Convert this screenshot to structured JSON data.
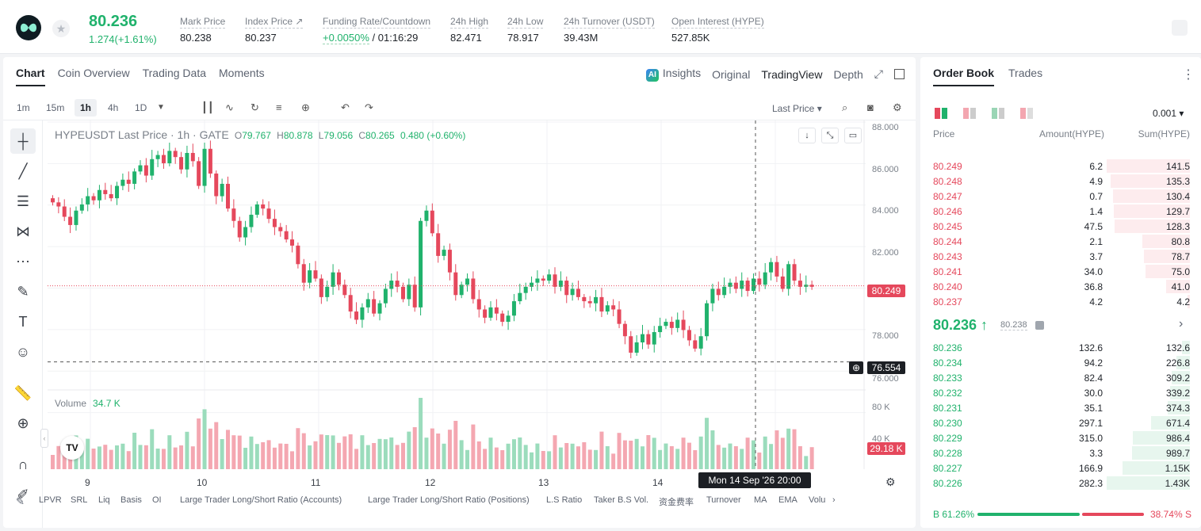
{
  "header": {
    "price": "80.236",
    "change": "1.274(+1.61%)",
    "stats": [
      {
        "label": "Mark Price",
        "value": "80.238"
      },
      {
        "label": "Index Price ↗",
        "value": "80.237"
      },
      {
        "label": "Funding Rate/Countdown",
        "value_green": "+0.0050%",
        "value": " / 01:16:29"
      },
      {
        "label": "24h High",
        "value": "82.471"
      },
      {
        "label": "24h Low",
        "value": "78.917"
      },
      {
        "label": "24h Turnover (USDT)",
        "value": "39.43M"
      },
      {
        "label": "Open Interest (HYPE)",
        "value": "527.85K"
      }
    ]
  },
  "chart_tabs": [
    "Chart",
    "Coin Overview",
    "Trading Data",
    "Moments"
  ],
  "chart_right_tabs": {
    "insights": "Insights",
    "ai": "AI",
    "original": "Original",
    "tradingview": "TradingView",
    "depth": "Depth"
  },
  "timeframes": [
    "1m",
    "15m",
    "1h",
    "4h",
    "1D"
  ],
  "last_price_select": "Last Price",
  "legend": {
    "symbol": "HYPEUSDT Last Price · 1h · GATE",
    "o": "79.767",
    "h": "80.878",
    "l": "79.056",
    "c": "80.265",
    "chg": "0.480 (+0.60%)"
  },
  "volume_legend": {
    "label": "Volume",
    "value": "34.7 K"
  },
  "price_axis": [
    "88.000",
    "86.000",
    "84.000",
    "82.000",
    "78.000",
    "76.000"
  ],
  "volume_axis": [
    "80 K",
    "40 K"
  ],
  "price_label": "80.249",
  "cross_price": "76.554",
  "volume_label": "29.18 K",
  "x_labels": [
    "9",
    "10",
    "11",
    "12",
    "13",
    "14"
  ],
  "crosshair_time": "Mon 14 Sep '26   20:00",
  "tv_logo": "TV",
  "bottom_indicators": [
    "LPVR",
    "SRL",
    "Liq",
    "Basis",
    "OI",
    "Large Trader Long/Short Ratio (Accounts)",
    "Large Trader Long/Short Ratio (Positions)",
    "L.S Ratio",
    "Taker B.S Vol.",
    "资金费率",
    "Turnover",
    "MA",
    "EMA",
    "Volu"
  ],
  "orderbook": {
    "tabs": [
      "Order Book",
      "Trades"
    ],
    "precision": "0.001",
    "headers": {
      "price": "Price",
      "amount": "Amount(HYPE)",
      "sum": "Sum(HYPE)"
    },
    "asks": [
      {
        "p": "80.249",
        "a": "6.2",
        "s": "141.5",
        "w": 1.0
      },
      {
        "p": "80.248",
        "a": "4.9",
        "s": "135.3",
        "w": 0.956
      },
      {
        "p": "80.247",
        "a": "0.7",
        "s": "130.4",
        "w": 0.922
      },
      {
        "p": "80.246",
        "a": "1.4",
        "s": "129.7",
        "w": 0.917
      },
      {
        "p": "80.245",
        "a": "47.5",
        "s": "128.3",
        "w": 0.907
      },
      {
        "p": "80.244",
        "a": "2.1",
        "s": "80.8",
        "w": 0.571
      },
      {
        "p": "80.243",
        "a": "3.7",
        "s": "78.7",
        "w": 0.556
      },
      {
        "p": "80.241",
        "a": "34.0",
        "s": "75.0",
        "w": 0.53
      },
      {
        "p": "80.240",
        "a": "36.8",
        "s": "41.0",
        "w": 0.29
      },
      {
        "p": "80.237",
        "a": "4.2",
        "s": "4.2",
        "w": 0.03
      }
    ],
    "mid": {
      "price": "80.236 ↑",
      "mark": "80.238"
    },
    "bids": [
      {
        "p": "80.236",
        "a": "132.6",
        "s": "132.6",
        "w": 0.093
      },
      {
        "p": "80.234",
        "a": "94.2",
        "s": "226.8",
        "w": 0.159
      },
      {
        "p": "80.233",
        "a": "82.4",
        "s": "309.2",
        "w": 0.216
      },
      {
        "p": "80.232",
        "a": "30.0",
        "s": "339.2",
        "w": 0.237
      },
      {
        "p": "80.231",
        "a": "35.1",
        "s": "374.3",
        "w": 0.262
      },
      {
        "p": "80.230",
        "a": "297.1",
        "s": "671.4",
        "w": 0.47
      },
      {
        "p": "80.229",
        "a": "315.0",
        "s": "986.4",
        "w": 0.69
      },
      {
        "p": "80.228",
        "a": "3.3",
        "s": "989.7",
        "w": 0.692
      },
      {
        "p": "80.227",
        "a": "166.9",
        "s": "1.15K",
        "w": 0.805
      },
      {
        "p": "80.226",
        "a": "282.3",
        "s": "1.43K",
        "w": 1.0
      }
    ],
    "buy_ratio": "B 61.26%",
    "sell_ratio": "38.74% S",
    "buy_pct": 61.26
  },
  "colors": {
    "up": "#20b26c",
    "down": "#e5485c"
  },
  "chart_data": {
    "type": "candlestick",
    "symbol": "HYPEUSDT",
    "interval": "1h",
    "ylim": [
      75.5,
      88.2
    ],
    "x_ticks": [
      "9",
      "10",
      "11",
      "12",
      "13",
      "14"
    ],
    "close_series": [
      84.3,
      84.1,
      83.6,
      83.2,
      83.9,
      84.2,
      84.6,
      84.4,
      84.9,
      84.7,
      84.5,
      85.1,
      85.4,
      85.2,
      85.8,
      86.1,
      85.6,
      86.4,
      86.6,
      86.2,
      86.8,
      86.5,
      85.9,
      86.7,
      86.3,
      85.1,
      86.9,
      85.7,
      84.6,
      85.2,
      84.0,
      83.4,
      82.6,
      83.1,
      83.7,
      84.2,
      84.0,
      83.5,
      83.1,
      82.9,
      82.5,
      82.2,
      81.3,
      80.4,
      81.0,
      80.6,
      79.7,
      80.2,
      80.9,
      80.3,
      79.8,
      79.0,
      78.6,
      79.2,
      79.6,
      78.9,
      79.4,
      80.1,
      80.5,
      80.2,
      79.6,
      80.3,
      79.2,
      83.4,
      83.9,
      82.8,
      81.7,
      82.0,
      80.9,
      79.8,
      80.3,
      80.6,
      79.6,
      79.1,
      78.7,
      79.2,
      78.9,
      78.5,
      78.8,
      79.5,
      79.9,
      80.2,
      80.4,
      80.6,
      80.5,
      80.8,
      80.2,
      80.5,
      79.8,
      80.1,
      79.7,
      79.5,
      79.4,
      79.7,
      79.0,
      79.3,
      79.1,
      78.4,
      77.8,
      77.0,
      77.5,
      77.9,
      77.4,
      78.0,
      78.3,
      78.5,
      78.2,
      78.6,
      78.1,
      77.6,
      77.2,
      77.8,
      79.4,
      80.1,
      79.8,
      80.2,
      80.4,
      80.1,
      80.5,
      80.0,
      80.6,
      80.3,
      80.9,
      81.4,
      80.7,
      80.1,
      81.3,
      80.5,
      80.2,
      80.3,
      80.2
    ]
  }
}
